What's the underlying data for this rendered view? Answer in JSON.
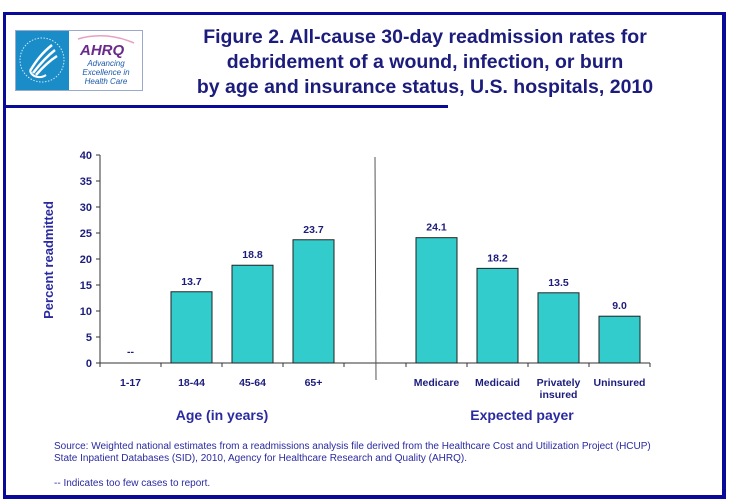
{
  "header": {
    "title_lines": [
      "Figure 2. All-cause 30-day readmission rates for",
      "debridement of a wound, infection, or burn",
      "by age and insurance status, U.S. hospitals, 2010"
    ],
    "logo": {
      "name": "AHRQ",
      "tagline": [
        "Advancing",
        "Excellence in",
        "Health Care"
      ]
    }
  },
  "chart_data": {
    "type": "bar",
    "title": "Figure 2. All-cause 30-day readmission rates for debridement of a wound, infection, or burn by age and insurance status, U.S. hospitals, 2010",
    "ylabel": "Percent readmitted",
    "ylim": [
      0,
      40
    ],
    "yticks": [
      0,
      5,
      10,
      15,
      20,
      25,
      30,
      35,
      40
    ],
    "grid": false,
    "bar_color": "#33CCCC",
    "groups": [
      {
        "xlabel": "Age (in years)",
        "categories": [
          "1-17",
          "18-44",
          "45-64",
          "65+"
        ],
        "values": [
          null,
          13.7,
          18.8,
          23.7
        ],
        "labels": [
          "--",
          "13.7",
          "18.8",
          "23.7"
        ]
      },
      {
        "xlabel": "Expected payer",
        "categories": [
          "Medicare",
          "Medicaid",
          "Privately insured",
          "Uninsured"
        ],
        "values": [
          24.1,
          18.2,
          13.5,
          9.0
        ],
        "labels": [
          "24.1",
          "18.2",
          "13.5",
          "9.0"
        ]
      }
    ]
  },
  "notes": {
    "source_lines": [
      "Source: Weighted national estimates from a readmissions analysis file derived from the Healthcare Cost and Utilization Project (HCUP)",
      "State Inpatient Databases (SID), 2010, Agency for Healthcare Research and Quality (AHRQ)."
    ],
    "footnote": "-- Indicates too few cases to report."
  }
}
